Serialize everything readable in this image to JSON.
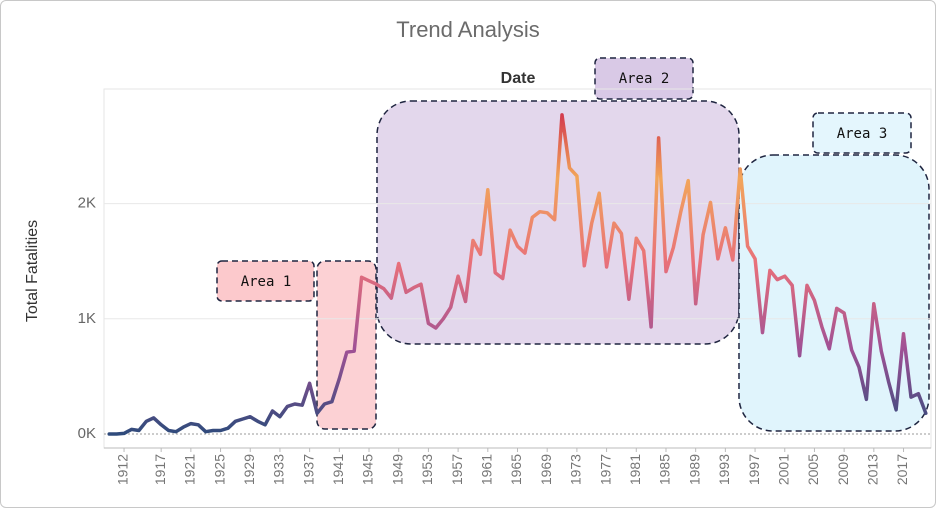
{
  "chart_data": {
    "type": "line",
    "title": "Trend Analysis",
    "x_label": "Date",
    "y_label": "Total Fatalities",
    "x": [
      1910,
      1911,
      1912,
      1913,
      1914,
      1915,
      1916,
      1917,
      1918,
      1919,
      1920,
      1921,
      1922,
      1923,
      1924,
      1925,
      1926,
      1927,
      1928,
      1929,
      1930,
      1931,
      1932,
      1933,
      1934,
      1935,
      1936,
      1937,
      1938,
      1939,
      1940,
      1941,
      1942,
      1943,
      1944,
      1945,
      1946,
      1947,
      1948,
      1949,
      1950,
      1951,
      1952,
      1953,
      1954,
      1955,
      1956,
      1957,
      1958,
      1959,
      1960,
      1961,
      1962,
      1963,
      1964,
      1965,
      1966,
      1967,
      1968,
      1969,
      1970,
      1971,
      1972,
      1973,
      1974,
      1975,
      1976,
      1977,
      1978,
      1979,
      1980,
      1981,
      1982,
      1983,
      1984,
      1985,
      1986,
      1987,
      1988,
      1989,
      1990,
      1991,
      1992,
      1993,
      1994,
      1995,
      1996,
      1997,
      1998,
      1999,
      2000,
      2001,
      2002,
      2003,
      2004,
      2005,
      2006,
      2007,
      2008,
      2009,
      2010,
      2011,
      2012,
      2013,
      2014,
      2015,
      2016,
      2017,
      2018,
      2019,
      2020
    ],
    "values": [
      0,
      0,
      5,
      40,
      30,
      110,
      140,
      80,
      30,
      20,
      60,
      90,
      80,
      20,
      30,
      30,
      50,
      110,
      130,
      150,
      110,
      80,
      200,
      150,
      240,
      260,
      250,
      440,
      180,
      260,
      280,
      480,
      710,
      720,
      1360,
      1330,
      1300,
      1260,
      1180,
      1480,
      1230,
      1270,
      1300,
      960,
      920,
      1000,
      1100,
      1370,
      1150,
      1680,
      1560,
      2120,
      1400,
      1350,
      1770,
      1630,
      1570,
      1880,
      1930,
      1920,
      1860,
      2770,
      2310,
      2240,
      1460,
      1830,
      2090,
      1450,
      1830,
      1740,
      1170,
      1700,
      1590,
      930,
      2570,
      1410,
      1620,
      1930,
      2200,
      1130,
      1730,
      2010,
      1520,
      1790,
      1510,
      2300,
      1630,
      1520,
      880,
      1420,
      1340,
      1370,
      1290,
      680,
      1290,
      1160,
      930,
      740,
      1090,
      1050,
      730,
      580,
      300,
      1130,
      720,
      450,
      210,
      870,
      320,
      350,
      180
    ],
    "color_stops": [
      "#2f4b7c",
      "#a05195",
      "#e8707a",
      "#f2a65a",
      "#c9184a"
    ],
    "xlim": [
      1909.3,
      2020.7
    ],
    "xticks": [
      1912,
      1917,
      1921,
      1925,
      1929,
      1933,
      1937,
      1941,
      1945,
      1949,
      1953,
      1957,
      1961,
      1965,
      1969,
      1973,
      1977,
      1981,
      1985,
      1989,
      1993,
      1997,
      2001,
      2005,
      2009,
      2013,
      2017
    ],
    "ylim": [
      0,
      2960
    ],
    "yticks": [
      {
        "value": 0,
        "label": "0K"
      },
      {
        "value": 1000,
        "label": "1K"
      },
      {
        "value": 2000,
        "label": "2K"
      }
    ],
    "grid": true,
    "annotations": [
      {
        "label": "Area 1"
      },
      {
        "label": "Area 2"
      },
      {
        "label": "Area 3"
      }
    ]
  }
}
